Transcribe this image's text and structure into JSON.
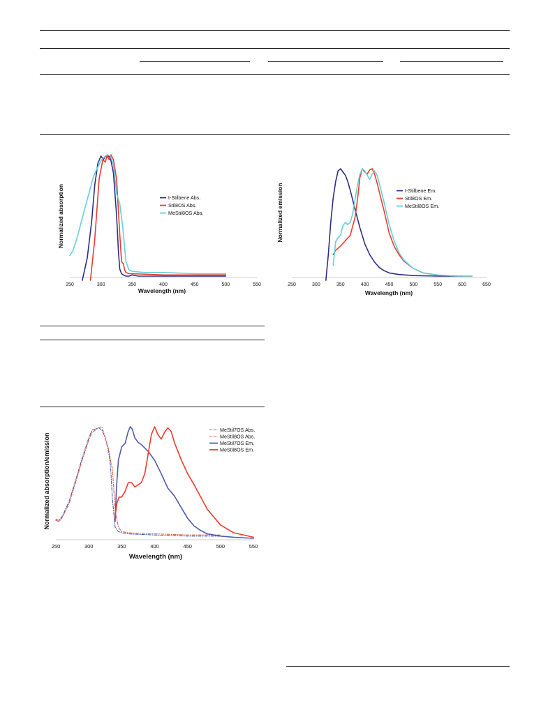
{
  "colors": {
    "navy": "#2e2e8a",
    "red": "#ee3b2b",
    "cyan": "#66cfdb",
    "bluegray": "#4f5ca8",
    "dashred": "#e0604f"
  },
  "chart_data": [
    {
      "type": "line",
      "xlabel": "Wavelength (nm)",
      "ylabel": "Normalized absorption",
      "xlim": [
        250,
        550
      ],
      "xticks": [
        250,
        300,
        350,
        400,
        450,
        500,
        550
      ],
      "ylim": [
        0,
        1
      ],
      "grid": false,
      "legend_position": "right",
      "series": [
        {
          "name": "t-Stilbene Abs.",
          "color": "#2e2e8a",
          "style": "solid",
          "x": [
            270,
            278,
            285,
            290,
            295,
            300,
            304,
            307,
            310,
            313,
            316,
            320,
            325,
            328,
            330,
            333,
            336,
            340,
            345,
            350,
            360,
            400,
            500
          ],
          "y": [
            -0.05,
            0.15,
            0.45,
            0.75,
            0.93,
            0.99,
            0.96,
            0.99,
            0.98,
            0.99,
            0.95,
            0.85,
            0.5,
            0.2,
            0.06,
            0.02,
            0.01,
            0.0,
            0.0,
            0.01,
            0.0,
            0.0,
            0.0
          ]
        },
        {
          "name": "Stil8OS Abs.",
          "color": "#ee3b2b",
          "style": "solid",
          "x": [
            283,
            290,
            297,
            303,
            307,
            310,
            313,
            316,
            320,
            325,
            330,
            333,
            336,
            338,
            340,
            345,
            350,
            400,
            500
          ],
          "y": [
            -0.05,
            0.3,
            0.8,
            0.96,
            0.94,
            1.0,
            0.96,
            1.0,
            0.96,
            0.8,
            0.35,
            0.12,
            0.1,
            0.05,
            0.03,
            0.02,
            0.02,
            0.01,
            0.01
          ]
        },
        {
          "name": "MeStil8OS Abs.",
          "color": "#66cfdb",
          "style": "solid",
          "x": [
            250,
            255,
            262,
            270,
            280,
            288,
            295,
            300,
            305,
            310,
            315,
            320,
            325,
            330,
            335,
            340,
            345,
            350,
            370,
            400,
            450,
            500
          ],
          "y": [
            0.17,
            0.21,
            0.32,
            0.48,
            0.67,
            0.82,
            0.9,
            0.95,
            0.98,
            1.0,
            0.99,
            0.92,
            0.68,
            0.6,
            0.4,
            0.12,
            0.05,
            0.04,
            0.03,
            0.03,
            0.02,
            0.02
          ]
        }
      ]
    },
    {
      "type": "line",
      "xlabel": "Wavelength (nm)",
      "ylabel": "Normalized emission",
      "xlim": [
        250,
        650
      ],
      "xticks": [
        250,
        300,
        350,
        400,
        450,
        500,
        550,
        600,
        650
      ],
      "ylim": [
        0,
        1
      ],
      "grid": false,
      "legend_position": "right",
      "series": [
        {
          "name": "t-Stilbene Em.",
          "color": "#2e2e8a",
          "style": "solid",
          "x": [
            320,
            325,
            330,
            335,
            340,
            345,
            350,
            355,
            360,
            365,
            370,
            380,
            390,
            400,
            410,
            420,
            430,
            440,
            450,
            470,
            500,
            550,
            600
          ],
          "y": [
            -0.05,
            0.2,
            0.5,
            0.73,
            0.88,
            0.98,
            1.0,
            0.97,
            0.94,
            0.88,
            0.8,
            0.62,
            0.45,
            0.3,
            0.2,
            0.13,
            0.08,
            0.05,
            0.03,
            0.015,
            0.005,
            0.0,
            0.0
          ]
        },
        {
          "name": "Stil8OS Em.",
          "color": "#ee3b2b",
          "style": "solid",
          "x": [
            335,
            340,
            350,
            360,
            370,
            380,
            385,
            390,
            395,
            400,
            405,
            410,
            415,
            420,
            425,
            430,
            440,
            450,
            460,
            470,
            480,
            500,
            520,
            550,
            600,
            620
          ],
          "y": [
            0.2,
            0.24,
            0.28,
            0.33,
            0.38,
            0.55,
            0.72,
            0.92,
            1.0,
            0.97,
            0.95,
            0.99,
            1.0,
            0.95,
            0.87,
            0.78,
            0.6,
            0.4,
            0.28,
            0.2,
            0.14,
            0.07,
            0.03,
            0.01,
            0.0,
            0.0
          ]
        },
        {
          "name": "MeStil8OS Em.",
          "color": "#66cfdb",
          "style": "solid",
          "x": [
            335,
            340,
            345,
            350,
            355,
            360,
            365,
            370,
            375,
            380,
            385,
            390,
            395,
            400,
            405,
            410,
            415,
            420,
            425,
            430,
            440,
            450,
            460,
            470,
            480,
            500,
            520,
            550,
            600,
            620
          ],
          "y": [
            0.1,
            0.32,
            0.36,
            0.38,
            0.47,
            0.5,
            0.48,
            0.5,
            0.58,
            0.72,
            0.85,
            0.95,
            1.0,
            0.98,
            0.94,
            0.9,
            0.95,
            0.98,
            0.94,
            0.86,
            0.68,
            0.48,
            0.33,
            0.22,
            0.15,
            0.07,
            0.03,
            0.01,
            0.0,
            0.0
          ]
        }
      ]
    },
    {
      "type": "line",
      "xlabel": "Wavelength (nm)",
      "ylabel": "Normalized absorption/emission",
      "xlim": [
        250,
        550
      ],
      "xticks": [
        250,
        300,
        350,
        400,
        450,
        500,
        550
      ],
      "ylim": [
        0,
        1
      ],
      "grid": false,
      "legend_position": "top-right",
      "series": [
        {
          "name": "MeStil7OS Abs.",
          "color": "#4f5ca8",
          "style": "dashdot",
          "x": [
            250,
            255,
            260,
            270,
            280,
            290,
            300,
            305,
            310,
            315,
            320,
            325,
            330,
            333,
            336,
            340,
            345,
            350,
            360,
            400,
            450,
            500
          ],
          "y": [
            0.17,
            0.16,
            0.2,
            0.33,
            0.52,
            0.72,
            0.9,
            0.97,
            0.98,
            0.99,
            0.97,
            0.9,
            0.78,
            0.65,
            0.35,
            0.1,
            0.06,
            0.05,
            0.04,
            0.03,
            0.02,
            0.02
          ]
        },
        {
          "name": "MeStil8OS Abs.",
          "color": "#e0604f",
          "style": "dashdot",
          "x": [
            250,
            255,
            260,
            270,
            280,
            290,
            300,
            305,
            310,
            315,
            320,
            325,
            330,
            333,
            336,
            340,
            345,
            350,
            360,
            400,
            450,
            500
          ],
          "y": [
            0.16,
            0.15,
            0.19,
            0.31,
            0.5,
            0.7,
            0.88,
            0.95,
            0.97,
            0.99,
            1.0,
            0.9,
            0.8,
            0.7,
            0.62,
            0.25,
            0.1,
            0.06,
            0.05,
            0.04,
            0.03,
            0.03
          ]
        },
        {
          "name": "MeStil7OS Em.",
          "color": "#4f5ca8",
          "style": "solid",
          "x": [
            340,
            342,
            345,
            350,
            355,
            360,
            363,
            366,
            370,
            375,
            380,
            390,
            400,
            410,
            420,
            430,
            440,
            450,
            460,
            470,
            480,
            500,
            520,
            550
          ],
          "y": [
            0.15,
            0.45,
            0.7,
            0.82,
            0.85,
            0.96,
            1.0,
            0.98,
            0.9,
            0.86,
            0.84,
            0.78,
            0.7,
            0.58,
            0.45,
            0.38,
            0.28,
            0.18,
            0.11,
            0.07,
            0.04,
            0.02,
            0.01,
            0.0
          ]
        },
        {
          "name": "MeStil8OS Em.",
          "color": "#ee3b2b",
          "style": "solid",
          "x": [
            340,
            343,
            346,
            350,
            355,
            360,
            365,
            370,
            375,
            380,
            385,
            390,
            395,
            400,
            405,
            410,
            415,
            420,
            425,
            430,
            440,
            450,
            460,
            470,
            480,
            500,
            520,
            550
          ],
          "y": [
            0.2,
            0.32,
            0.37,
            0.37,
            0.42,
            0.5,
            0.5,
            0.46,
            0.48,
            0.5,
            0.58,
            0.75,
            0.93,
            1.0,
            0.93,
            0.89,
            0.95,
            0.99,
            0.96,
            0.86,
            0.71,
            0.58,
            0.48,
            0.37,
            0.26,
            0.12,
            0.05,
            0.01
          ]
        }
      ]
    }
  ]
}
